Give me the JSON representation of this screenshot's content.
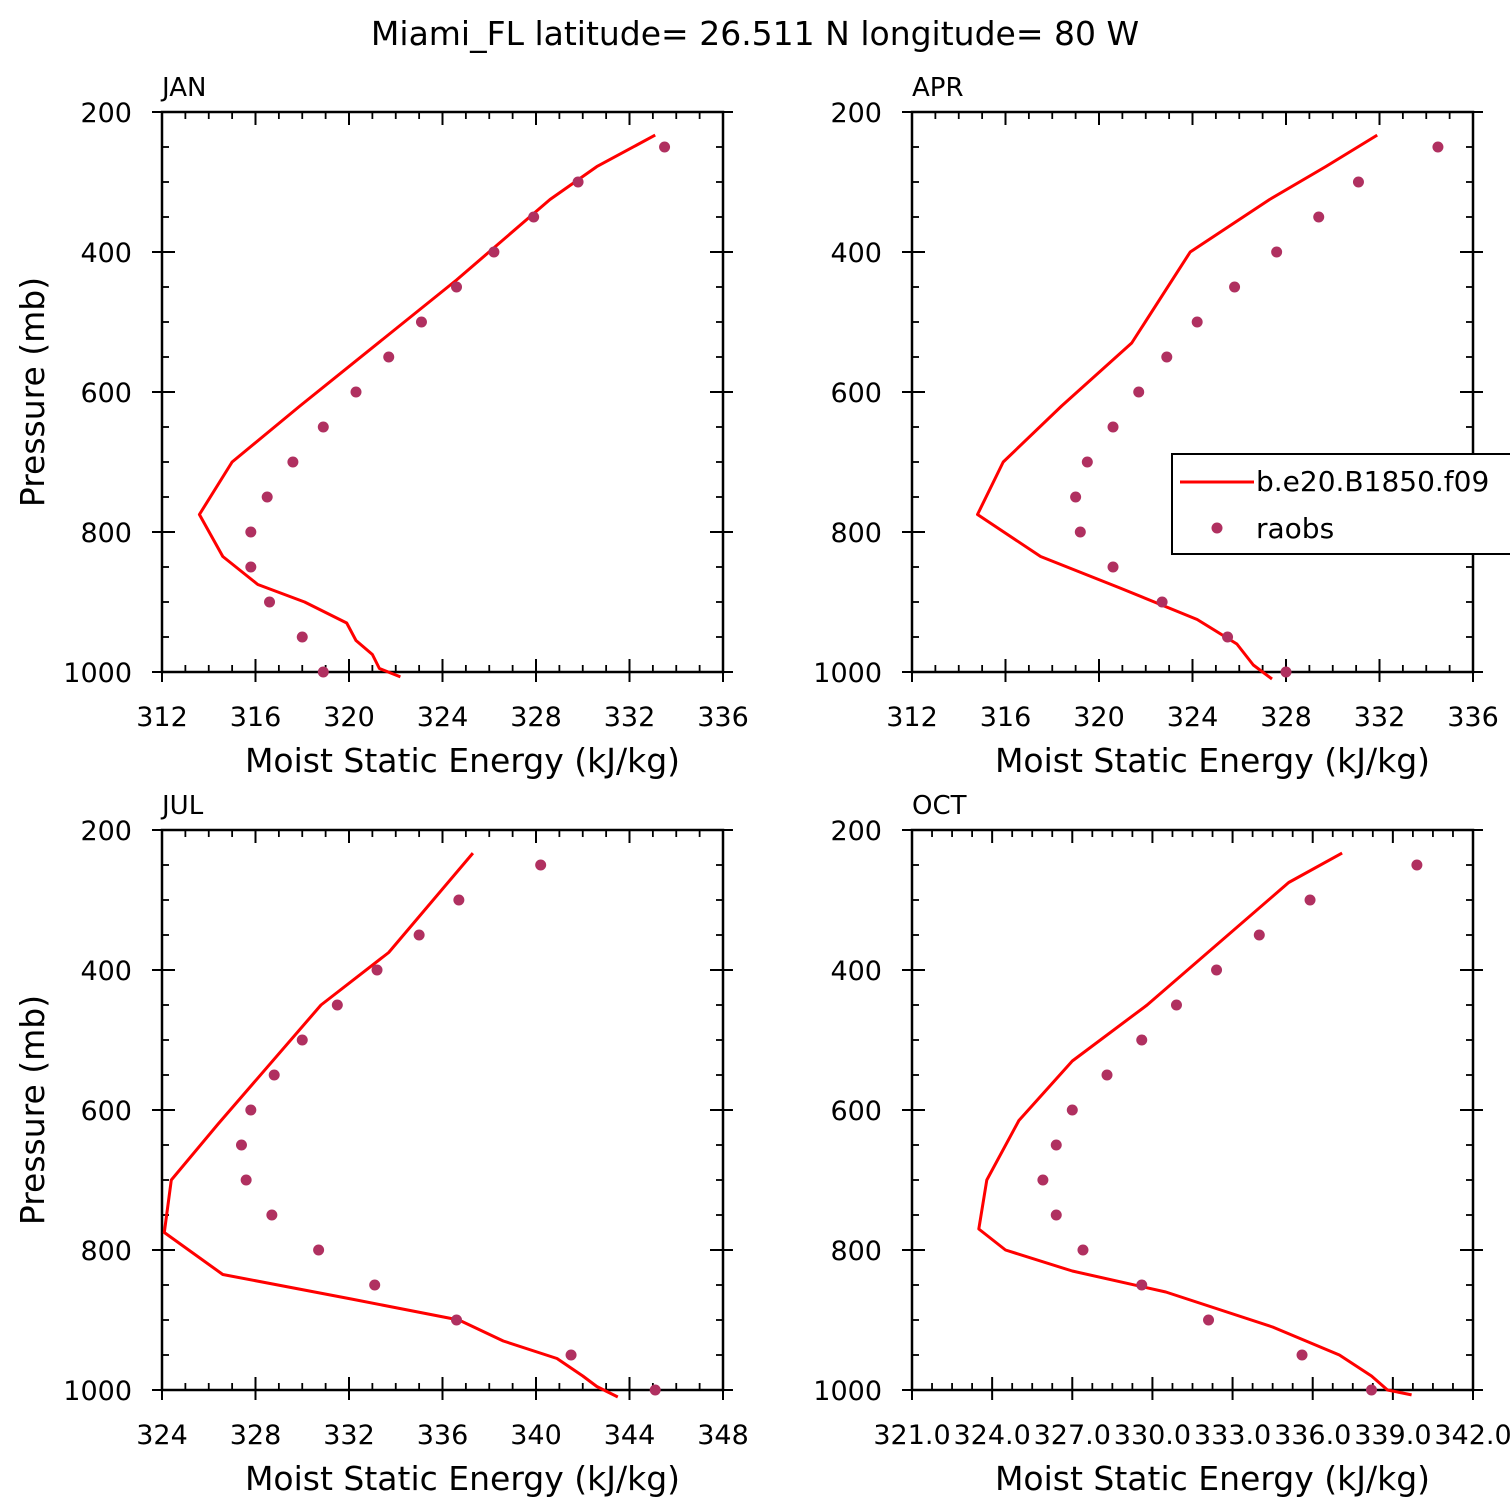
{
  "title": "Miami_FL  latitude= 26.511 N longitude= 80 W",
  "chart_data": [
    {
      "type": "line",
      "panel_label": "JAN",
      "xlabel": "Moist Static Energy (kJ/kg)",
      "ylabel": "Pressure (mb)",
      "xlim": [
        312,
        336
      ],
      "ylim": [
        1000,
        200
      ],
      "xticks": [
        312,
        316,
        320,
        324,
        328,
        332,
        336
      ],
      "xtick_labels": [
        "312",
        "316",
        "320",
        "324",
        "328",
        "332",
        "336"
      ],
      "yticks": [
        200,
        400,
        600,
        800,
        1000
      ],
      "ytick_labels": [
        "200",
        "400",
        "600",
        "800",
        "1000"
      ],
      "series": [
        {
          "name": "b.e20.B1850.f09",
          "kind": "line",
          "color": "#ff0000",
          "x": [
            333.1,
            330.6,
            328.6,
            324.6,
            317.9,
            315.0,
            313.6,
            314.6,
            316.1,
            318.1,
            319.9,
            320.3,
            321.0,
            321.3,
            322.2
          ],
          "y": [
            233,
            278,
            325,
            440,
            620,
            700,
            775,
            835,
            875,
            900,
            930,
            955,
            975,
            995,
            1007
          ]
        },
        {
          "name": "raobs",
          "kind": "scatter",
          "color": "#b03060",
          "x": [
            333.5,
            329.8,
            327.9,
            326.2,
            324.6,
            323.1,
            321.7,
            320.3,
            318.9,
            317.6,
            316.5,
            315.8,
            315.8,
            316.6,
            318.0,
            318.9
          ],
          "y": [
            250,
            300,
            350,
            400,
            450,
            500,
            550,
            600,
            650,
            700,
            750,
            800,
            850,
            900,
            950,
            1000
          ]
        }
      ]
    },
    {
      "type": "line",
      "panel_label": "APR",
      "xlabel": "Moist Static Energy (kJ/kg)",
      "ylabel": "",
      "xlim": [
        312,
        336
      ],
      "ylim": [
        1000,
        200
      ],
      "xticks": [
        312,
        316,
        320,
        324,
        328,
        332,
        336
      ],
      "xtick_labels": [
        "312",
        "316",
        "320",
        "324",
        "328",
        "332",
        "336"
      ],
      "yticks": [
        200,
        400,
        600,
        800,
        1000
      ],
      "ytick_labels": [
        "200",
        "400",
        "600",
        "800",
        "1000"
      ],
      "legend": {
        "position": "right",
        "entries": [
          "b.e20.B1850.f09",
          "raobs"
        ]
      },
      "series": [
        {
          "name": "b.e20.B1850.f09",
          "kind": "line",
          "color": "#ff0000",
          "x": [
            331.9,
            329.7,
            327.3,
            323.9,
            321.4,
            318.4,
            315.9,
            314.8,
            317.5,
            320.9,
            324.2,
            325.9,
            326.6,
            327.4
          ],
          "y": [
            233,
            278,
            325,
            400,
            530,
            620,
            700,
            775,
            835,
            880,
            925,
            960,
            990,
            1010
          ]
        },
        {
          "name": "raobs",
          "kind": "scatter",
          "color": "#b03060",
          "x": [
            334.5,
            331.1,
            329.4,
            327.6,
            325.8,
            324.2,
            322.9,
            321.7,
            320.6,
            319.5,
            319.0,
            319.2,
            320.6,
            322.7,
            325.5,
            328.0
          ],
          "y": [
            250,
            300,
            350,
            400,
            450,
            500,
            550,
            600,
            650,
            700,
            750,
            800,
            850,
            900,
            950,
            1000
          ]
        }
      ]
    },
    {
      "type": "line",
      "panel_label": "JUL",
      "xlabel": "Moist Static Energy (kJ/kg)",
      "ylabel": "Pressure (mb)",
      "xlim": [
        324,
        348
      ],
      "ylim": [
        1000,
        200
      ],
      "xticks": [
        324,
        328,
        332,
        336,
        340,
        344,
        348
      ],
      "xtick_labels": [
        "324",
        "328",
        "332",
        "336",
        "340",
        "344",
        "348"
      ],
      "yticks": [
        200,
        400,
        600,
        800,
        1000
      ],
      "ytick_labels": [
        "200",
        "400",
        "600",
        "800",
        "1000"
      ],
      "series": [
        {
          "name": "b.e20.B1850.f09",
          "kind": "line",
          "color": "#ff0000",
          "x": [
            337.3,
            333.7,
            330.8,
            326.4,
            324.4,
            324.1,
            326.6,
            332.1,
            336.7,
            338.6,
            340.9,
            342.0,
            342.6,
            343.5
          ],
          "y": [
            233,
            375,
            450,
            620,
            700,
            775,
            835,
            870,
            900,
            930,
            955,
            980,
            995,
            1010
          ]
        },
        {
          "name": "raobs",
          "kind": "scatter",
          "color": "#b03060",
          "x": [
            340.2,
            336.7,
            335.0,
            333.2,
            331.5,
            330.0,
            328.8,
            327.8,
            327.4,
            327.6,
            328.7,
            330.7,
            333.1,
            336.6,
            341.5,
            345.1
          ],
          "y": [
            250,
            300,
            350,
            400,
            450,
            500,
            550,
            600,
            650,
            700,
            750,
            800,
            850,
            900,
            950,
            1000
          ]
        }
      ]
    },
    {
      "type": "line",
      "panel_label": "OCT",
      "xlabel": "Moist Static Energy (kJ/kg)",
      "ylabel": "",
      "xlim": [
        321,
        342
      ],
      "ylim": [
        1000,
        200
      ],
      "xticks": [
        321,
        324,
        327,
        330,
        333,
        336,
        339,
        342
      ],
      "xtick_labels": [
        "321.0",
        "324.0",
        "327.0",
        "330.0",
        "333.0",
        "336.0",
        "339.0",
        "342.0"
      ],
      "yticks": [
        200,
        400,
        600,
        800,
        1000
      ],
      "ytick_labels": [
        "200",
        "400",
        "600",
        "800",
        "1000"
      ],
      "series": [
        {
          "name": "b.e20.B1850.f09",
          "kind": "line",
          "color": "#ff0000",
          "x": [
            337.1,
            335.1,
            329.8,
            327.0,
            325.0,
            323.8,
            323.5,
            324.5,
            327.0,
            330.5,
            334.5,
            337.0,
            338.2,
            338.8,
            339.7
          ],
          "y": [
            233,
            275,
            450,
            530,
            615,
            700,
            770,
            800,
            830,
            860,
            910,
            950,
            980,
            1000,
            1007
          ]
        },
        {
          "name": "raobs",
          "kind": "scatter",
          "color": "#b03060",
          "x": [
            339.9,
            335.9,
            334.0,
            332.4,
            330.9,
            329.6,
            328.3,
            327.0,
            326.4,
            325.9,
            326.4,
            327.4,
            329.6,
            332.1,
            335.6,
            338.2
          ],
          "y": [
            250,
            300,
            350,
            400,
            450,
            500,
            550,
            600,
            650,
            700,
            750,
            800,
            850,
            900,
            950,
            1000
          ]
        }
      ]
    }
  ]
}
